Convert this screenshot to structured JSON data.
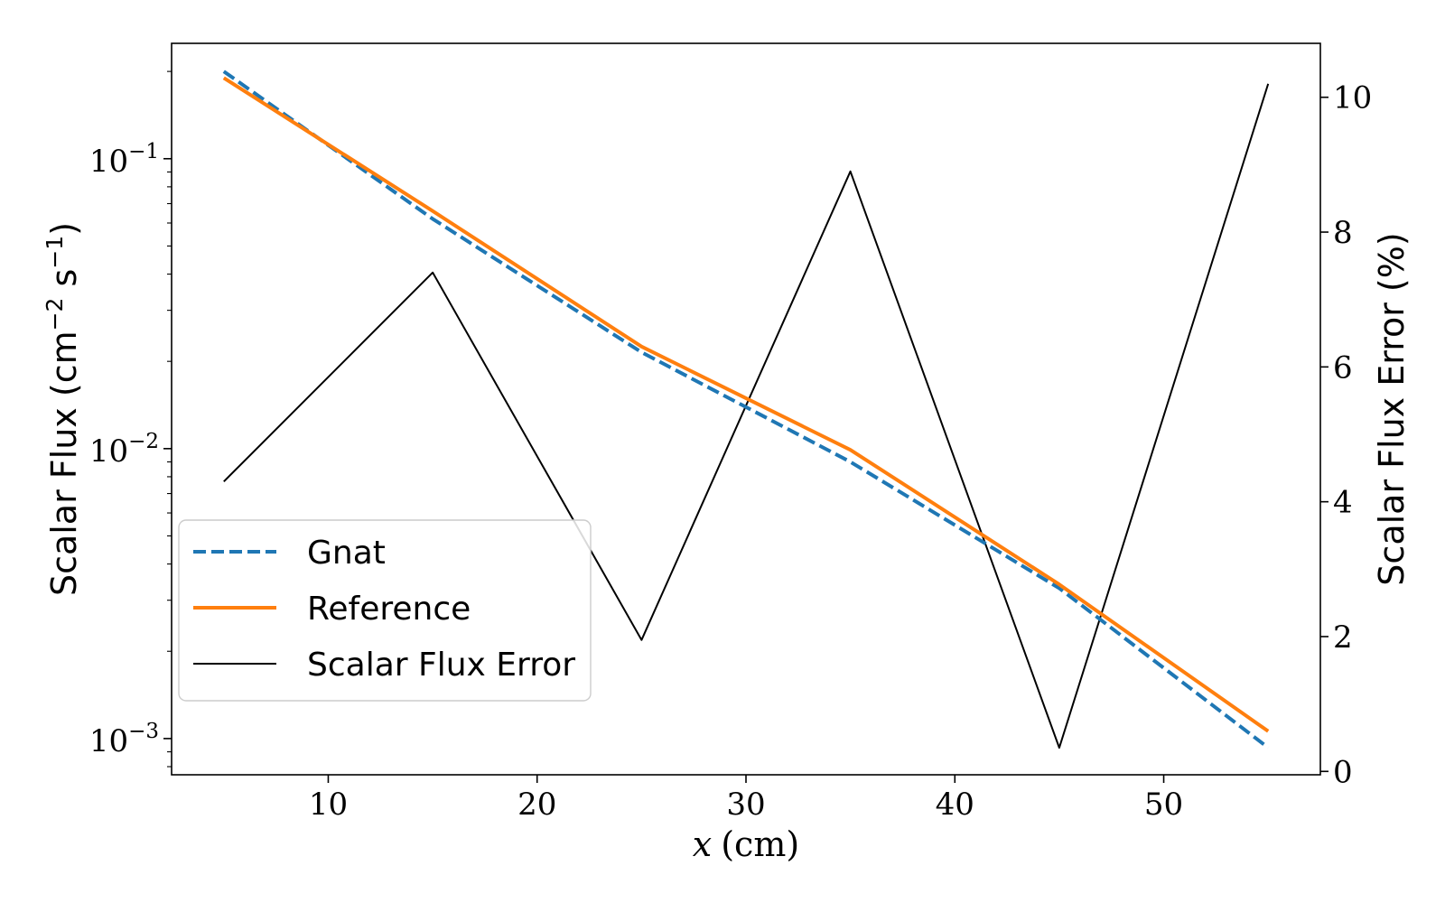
{
  "chart_data": {
    "type": "line",
    "xlabel_var": "x",
    "xlabel_unit": "(cm)",
    "ylabel_left": "Scalar Flux (cm",
    "ylabel_left_exp1": "−2",
    "ylabel_left_mid": " s",
    "ylabel_left_exp2": "−1",
    "ylabel_left_end": ")",
    "ylabel_right": "Scalar Flux Error (%)",
    "x": [
      5,
      15,
      25,
      35,
      45,
      55
    ],
    "xlim": [
      2.5,
      57.5
    ],
    "xticks": [
      10,
      20,
      30,
      40,
      50
    ],
    "xtick_labels": [
      "10",
      "20",
      "30",
      "40",
      "50"
    ],
    "ylim_left": [
      0.00075,
      0.25
    ],
    "yscale_left": "log",
    "yticks_left": [
      0.1,
      0.01,
      0.001
    ],
    "ytick_labels_left": [
      {
        "base": "10",
        "exp": "−1"
      },
      {
        "base": "10",
        "exp": "−2"
      },
      {
        "base": "10",
        "exp": "−3"
      }
    ],
    "ylim_right": [
      -0.05,
      10.8
    ],
    "yticks_right": [
      0,
      2,
      4,
      6,
      8,
      10
    ],
    "ytick_labels_right": [
      "0",
      "2",
      "4",
      "6",
      "8",
      "10"
    ],
    "series": [
      {
        "name": "Gnat",
        "axis": "left",
        "style": "dashed",
        "color": "#1f77b4",
        "values": [
          0.2,
          0.062,
          0.0215,
          0.009,
          0.0033,
          0.00093
        ]
      },
      {
        "name": "Reference",
        "axis": "left",
        "style": "solid",
        "color": "#ff7f0e",
        "values": [
          0.19,
          0.066,
          0.0225,
          0.0099,
          0.0034,
          0.00106
        ]
      },
      {
        "name": "Scalar Flux Error",
        "axis": "right",
        "style": "solid",
        "color": "#000000",
        "values": [
          4.3,
          7.4,
          1.95,
          8.9,
          0.35,
          10.2
        ]
      }
    ],
    "legend_position": "lower-left",
    "grid": false
  }
}
